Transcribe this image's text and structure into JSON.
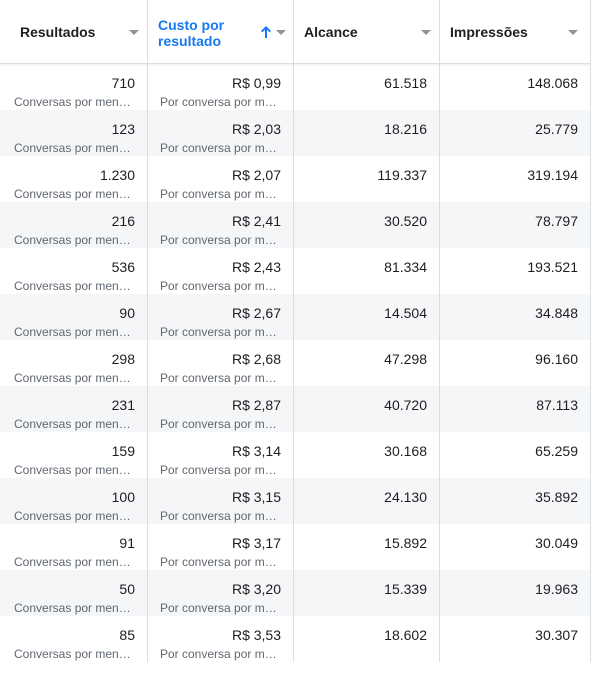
{
  "columns": [
    {
      "key": "resultados",
      "label": "Resultados",
      "sorted": false
    },
    {
      "key": "custo",
      "label": "Custo por resultado",
      "sorted": true,
      "sort_direction": "ascending"
    },
    {
      "key": "alcance",
      "label": "Alcance",
      "sorted": false
    },
    {
      "key": "impressoes",
      "label": "Impressões",
      "sorted": false
    }
  ],
  "colors": {
    "sort_active": "#1877f2",
    "border": "#dadde1",
    "row_alt": "#f5f6f7",
    "muted_text": "#606770"
  },
  "rows": [
    {
      "resultados": "710",
      "resultados_sub": "Conversas por mensagem iniciadas",
      "custo": "R$ 0,99",
      "custo_sub": "Por conversa por mensagem iniciada",
      "alcance": "61.518",
      "impressoes": "148.068"
    },
    {
      "resultados": "123",
      "resultados_sub": "Conversas por mensagem iniciadas",
      "custo": "R$ 2,03",
      "custo_sub": "Por conversa por mensagem iniciada",
      "alcance": "18.216",
      "impressoes": "25.779"
    },
    {
      "resultados": "1.230",
      "resultados_sub": "Conversas por mensagem iniciadas",
      "custo": "R$ 2,07",
      "custo_sub": "Por conversa por mensagem iniciada",
      "alcance": "119.337",
      "impressoes": "319.194"
    },
    {
      "resultados": "216",
      "resultados_sub": "Conversas por mensagem iniciadas",
      "custo": "R$ 2,41",
      "custo_sub": "Por conversa por mensagem iniciada",
      "alcance": "30.520",
      "impressoes": "78.797"
    },
    {
      "resultados": "536",
      "resultados_sub": "Conversas por mensagem iniciadas",
      "custo": "R$ 2,43",
      "custo_sub": "Por conversa por mensagem iniciada",
      "alcance": "81.334",
      "impressoes": "193.521"
    },
    {
      "resultados": "90",
      "resultados_sub": "Conversas por mensagem iniciadas",
      "custo": "R$ 2,67",
      "custo_sub": "Por conversa por mensagem iniciada",
      "alcance": "14.504",
      "impressoes": "34.848"
    },
    {
      "resultados": "298",
      "resultados_sub": "Conversas por mensagem iniciadas",
      "custo": "R$ 2,68",
      "custo_sub": "Por conversa por mensagem iniciada",
      "alcance": "47.298",
      "impressoes": "96.160"
    },
    {
      "resultados": "231",
      "resultados_sub": "Conversas por mensagem iniciadas",
      "custo": "R$ 2,87",
      "custo_sub": "Por conversa por mensagem iniciada",
      "alcance": "40.720",
      "impressoes": "87.113"
    },
    {
      "resultados": "159",
      "resultados_sub": "Conversas por mensagem iniciadas",
      "custo": "R$ 3,14",
      "custo_sub": "Por conversa por mensagem iniciada",
      "alcance": "30.168",
      "impressoes": "65.259"
    },
    {
      "resultados": "100",
      "resultados_sub": "Conversas por mensagem iniciadas",
      "custo": "R$ 3,15",
      "custo_sub": "Por conversa por mensagem iniciada",
      "alcance": "24.130",
      "impressoes": "35.892"
    },
    {
      "resultados": "91",
      "resultados_sub": "Conversas por mensagem iniciadas",
      "custo": "R$ 3,17",
      "custo_sub": "Por conversa por mensagem iniciada",
      "alcance": "15.892",
      "impressoes": "30.049"
    },
    {
      "resultados": "50",
      "resultados_sub": "Conversas por mensagem iniciadas",
      "custo": "R$ 3,20",
      "custo_sub": "Por conversa por mensagem iniciada",
      "alcance": "15.339",
      "impressoes": "19.963"
    },
    {
      "resultados": "85",
      "resultados_sub": "Conversas por mensagem iniciadas",
      "custo": "R$ 3,53",
      "custo_sub": "Por conversa por mensagem iniciada",
      "alcance": "18.602",
      "impressoes": "30.307"
    }
  ]
}
